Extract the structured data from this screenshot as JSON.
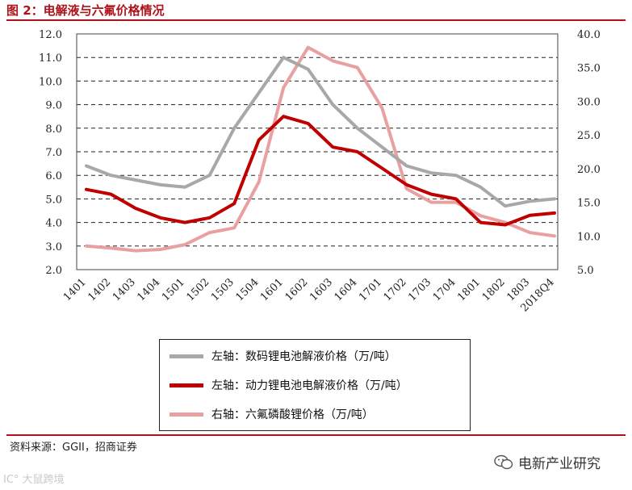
{
  "figure": {
    "title": "图 2：电解液与六氟价格情况",
    "source": "资料来源：GGII，招商证券"
  },
  "watermarks": {
    "left": "IC° 大鼠跨境",
    "right": "电新产业研究",
    "right_icon": "wechat-icon"
  },
  "colors": {
    "accent": "#b0121b",
    "series_digital": "#a8a8a8",
    "series_power": "#c00000",
    "series_lipf6": "#e8a0a0"
  },
  "chart_data": {
    "type": "line",
    "categories": [
      "1401",
      "1402",
      "1403",
      "1404",
      "1501",
      "1502",
      "1503",
      "1504",
      "1601",
      "1602",
      "1603",
      "1604",
      "1701",
      "1702",
      "1703",
      "1704",
      "1801",
      "1802",
      "1803",
      "2018Q4"
    ],
    "y_left": {
      "ticks": [
        "12.0",
        "11.0",
        "10.0",
        "9.0",
        "8.0",
        "7.0",
        "6.0",
        "5.0",
        "4.0",
        "3.0",
        "2.0"
      ],
      "range": [
        2,
        12
      ]
    },
    "y_right": {
      "ticks": [
        "40.0",
        "35.0",
        "30.0",
        "25.0",
        "20.0",
        "15.0",
        "10.0",
        "5.0"
      ],
      "range": [
        5,
        40
      ]
    },
    "grid": "horizontal-dashed",
    "legend_position": "bottom",
    "series": [
      {
        "name": "左轴：数码锂电池解液价格（万/吨）",
        "axis": "left",
        "color": "#a8a8a8",
        "values": [
          6.4,
          6.0,
          5.8,
          5.6,
          5.5,
          6.0,
          8.0,
          9.5,
          11.0,
          10.5,
          9.0,
          8.0,
          7.2,
          6.4,
          6.1,
          6.0,
          5.5,
          4.7,
          4.9,
          5.0
        ]
      },
      {
        "name": "左轴：动力锂电池电解液价格（万/吨）",
        "axis": "left",
        "color": "#c00000",
        "values": [
          5.4,
          5.2,
          4.6,
          4.2,
          4.0,
          4.2,
          4.8,
          7.5,
          8.5,
          8.2,
          7.2,
          7.0,
          6.3,
          5.6,
          5.2,
          5.0,
          4.0,
          3.9,
          4.3,
          4.4
        ]
      },
      {
        "name": "右轴：六氟磷酸锂价格（万/吨）",
        "axis": "right",
        "color": "#e8a0a0",
        "values": [
          8.5,
          8.2,
          7.8,
          8.0,
          8.7,
          10.5,
          11.2,
          18.0,
          32.0,
          38.0,
          36.0,
          35.0,
          29.0,
          17.0,
          15.0,
          15.0,
          13.0,
          12.0,
          10.5,
          10.0
        ]
      }
    ]
  }
}
